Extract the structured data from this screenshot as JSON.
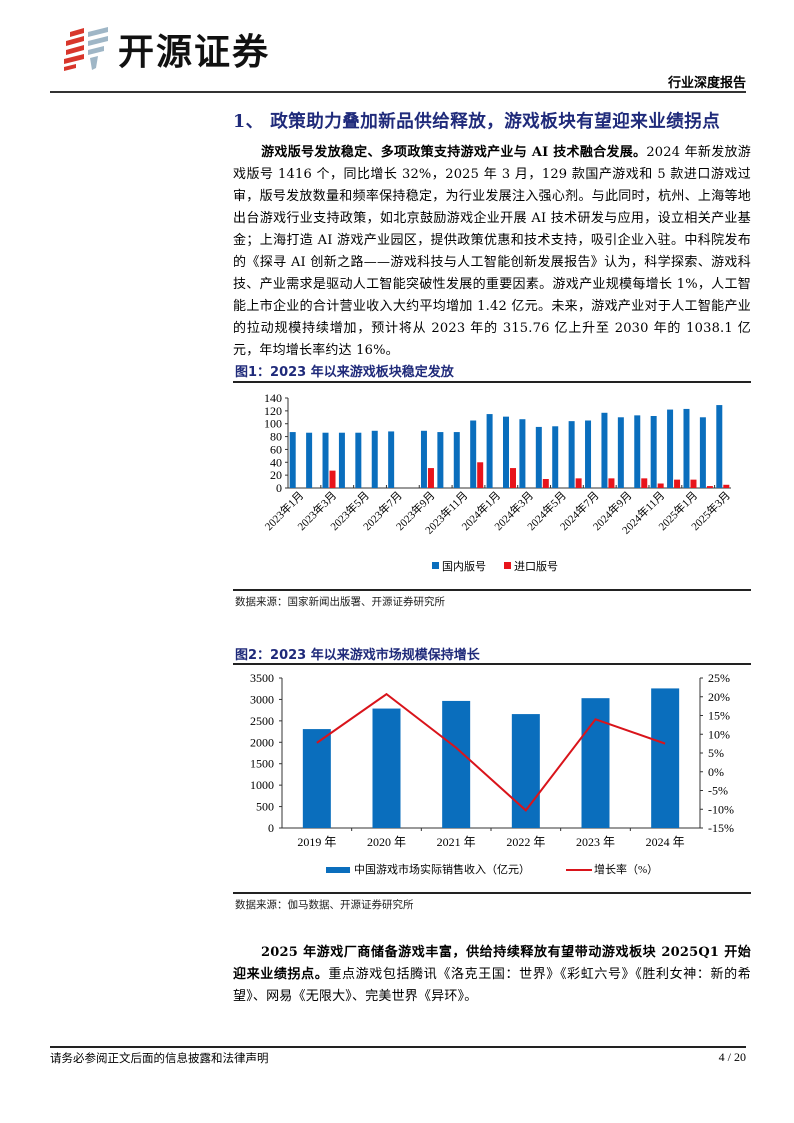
{
  "header": {
    "brand_name": "开源证券",
    "doc_type": "行业深度报告"
  },
  "section": {
    "title": "1、 政策助力叠加新品供给释放，游戏板块有望迎来业绩拐点"
  },
  "paragraph1": {
    "lead": "游戏版号发放稳定、多项政策支持游戏产业与 AI 技术融合发展。",
    "body": "2024 年新发放游戏版号 1416 个，同比增长 32%，2025 年 3 月，129 款国产游戏和 5 款进口游戏过审，版号发放数量和频率保持稳定，为行业发展注入强心剂。与此同时，杭州、上海等地出台游戏行业支持政策，如北京鼓励游戏企业开展 AI 技术研发与应用，设立相关产业基金；上海打造 AI 游戏产业园区，提供政策优惠和技术支持，吸引企业入驻。中科院发布的《探寻 AI 创新之路——游戏科技与人工智能创新发展报告》认为，科学探索、游戏科技、产业需求是驱动人工智能突破性发展的重要因素。游戏产业规模每增长 1%，人工智能上市企业的合计营业收入大约平均增加 1.42 亿元。未来，游戏产业对于人工智能产业的拉动规模持续增加，预计将从 2023 年的 315.76 亿上升至 2030 年的 1038.1 亿元，年均增长率约达 16%。"
  },
  "figure1": {
    "title": "图1：2023 年以来游戏板块稳定发放",
    "source": "数据来源：国家新闻出版署、开源证券研究所"
  },
  "figure2": {
    "title": "图2：2023 年以来游戏市场规模保持增长",
    "source": "数据来源：伽马数据、开源证券研究所"
  },
  "paragraph2": {
    "lead": "2025 年游戏厂商储备游戏丰富，供给持续释放有望带动游戏板块 2025Q1 开始迎来业绩拐点。",
    "body": "重点游戏包括腾讯《洛克王国：世界》《彩虹六号》《胜利女神：新的希望》、网易《无限大》、完美世界《异环》。"
  },
  "footer": {
    "disclaimer": "请务必参阅正文后面的信息披露和法律声明",
    "page": "4 / 20"
  },
  "colors": {
    "title_navy": "#1f2a7a",
    "bar_blue": "#0a6ebd",
    "bar_red": "#e8141b",
    "line_red": "#d9141b"
  },
  "chart_data": [
    {
      "type": "bar",
      "title": "图1：2023 年以来游戏板块稳定发放",
      "categories": [
        "2023年1月",
        "2023年2月",
        "2023年3月",
        "2023年4月",
        "2023年5月",
        "2023年6月",
        "2023年7月",
        "2023年8月",
        "2023年9月",
        "2023年10月",
        "2023年11月",
        "2023年12月",
        "2024年1月",
        "2024年2月",
        "2024年3月",
        "2024年4月",
        "2024年5月",
        "2024年6月",
        "2024年7月",
        "2024年8月",
        "2024年9月",
        "2024年10月",
        "2024年11月",
        "2024年12月",
        "2025年1月",
        "2025年2月",
        "2025年3月"
      ],
      "tick_labels": [
        "2023年1月",
        "2023年3月",
        "2023年5月",
        "2023年7月",
        "2023年9月",
        "2023年11月",
        "2024年1月",
        "2024年3月",
        "2024年5月",
        "2024年7月",
        "2024年9月",
        "2024年11月",
        "2025年1月",
        "2025年3月"
      ],
      "series": [
        {
          "name": "国内版号",
          "color": "#0a6ebd",
          "values": [
            87,
            86,
            86,
            86,
            86,
            89,
            88,
            0,
            89,
            87,
            87,
            105,
            115,
            111,
            107,
            95,
            96,
            104,
            105,
            117,
            110,
            113,
            112,
            122,
            123,
            110,
            129
          ]
        },
        {
          "name": "进口版号",
          "color": "#e8141b",
          "values": [
            0,
            0,
            27,
            0,
            0,
            0,
            0,
            0,
            31,
            0,
            0,
            40,
            0,
            31,
            0,
            14,
            0,
            15,
            0,
            15,
            0,
            15,
            7,
            13,
            13,
            3,
            5
          ]
        }
      ],
      "xlabel": "",
      "ylabel": "",
      "ylim": [
        0,
        140
      ],
      "yticks": [
        0,
        20,
        40,
        60,
        80,
        100,
        120,
        140
      ],
      "grid": false,
      "legend_position": "bottom"
    },
    {
      "type": "bar",
      "title": "图2：2023 年以来游戏市场规模保持增长",
      "categories": [
        "2019 年",
        "2020 年",
        "2021 年",
        "2022 年",
        "2023 年",
        "2024 年"
      ],
      "series": [
        {
          "name": "中国游戏市场实际销售收入（亿元）",
          "type": "bar",
          "axis": "left",
          "color": "#0a6ebd",
          "values": [
            2308,
            2787,
            2965,
            2658,
            3029,
            3257
          ]
        },
        {
          "name": "增长率（%）",
          "type": "line",
          "axis": "right",
          "color": "#d9141b",
          "values": [
            7.7,
            20.7,
            6.4,
            -10.3,
            14.0,
            7.5
          ]
        }
      ],
      "ylim_left": [
        0,
        3500
      ],
      "yticks_left": [
        0,
        500,
        1000,
        1500,
        2000,
        2500,
        3000,
        3500
      ],
      "ylim_right": [
        -15,
        25
      ],
      "yticks_right": [
        "-15%",
        "-10%",
        "-5%",
        "0%",
        "5%",
        "10%",
        "15%",
        "20%",
        "25%"
      ],
      "grid": false,
      "legend_position": "bottom"
    }
  ]
}
